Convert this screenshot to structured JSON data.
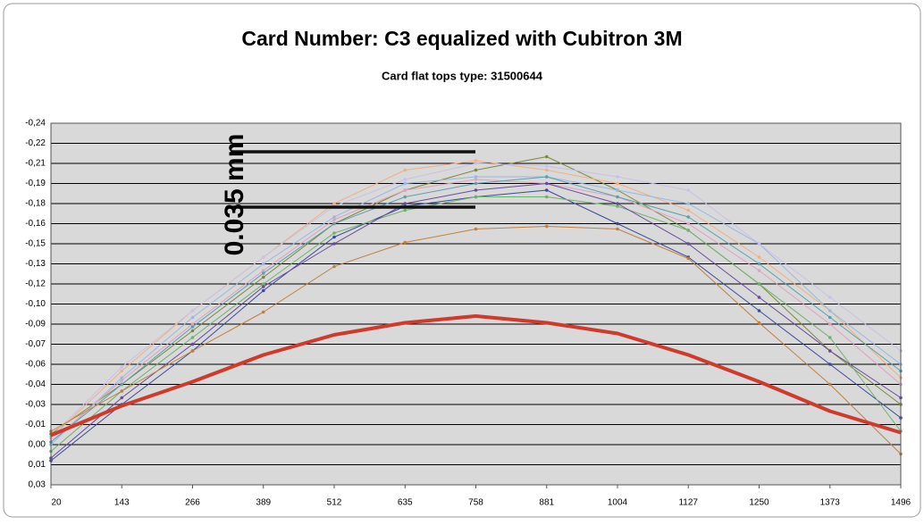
{
  "chart_data": {
    "type": "line",
    "title": "Card Number: C3 equalized with Cubitron 3M",
    "subtitle": "Card flat tops type: 31500644",
    "annotation": "0.035 mm",
    "x": [
      20,
      143,
      266,
      389,
      512,
      635,
      758,
      881,
      1004,
      1127,
      1250,
      1373,
      1496
    ],
    "xlim": [
      20,
      1496
    ],
    "xticks": [
      20,
      143,
      266,
      389,
      512,
      635,
      758,
      881,
      1004,
      1127,
      1250,
      1373,
      1496
    ],
    "ylim": [
      0.03,
      -0.24
    ],
    "yticks": [
      {
        "value": 0.03,
        "label": "0,03"
      },
      {
        "value": 0.015,
        "label": "0,01"
      },
      {
        "value": 0,
        "label": "0,00"
      },
      {
        "value": -0.015,
        "label": "-0,01"
      },
      {
        "value": -0.03,
        "label": "-0,03"
      },
      {
        "value": -0.045,
        "label": "-0,04"
      },
      {
        "value": -0.06,
        "label": "-0,06"
      },
      {
        "value": -0.075,
        "label": "-0,07"
      },
      {
        "value": -0.09,
        "label": "-0,09"
      },
      {
        "value": -0.105,
        "label": "-0,10"
      },
      {
        "value": -0.12,
        "label": "-0,12"
      },
      {
        "value": -0.135,
        "label": "-0,13"
      },
      {
        "value": -0.15,
        "label": "-0,15"
      },
      {
        "value": -0.165,
        "label": "-0,16"
      },
      {
        "value": -0.18,
        "label": "-0,18"
      },
      {
        "value": -0.195,
        "label": "-0,19"
      },
      {
        "value": -0.21,
        "label": "-0,21"
      },
      {
        "value": -0.225,
        "label": "-0,22"
      },
      {
        "value": -0.24,
        "label": "-0,24"
      }
    ],
    "grid": true,
    "series": [
      {
        "color": "#3a4a9a",
        "values": [
          0.012,
          -0.03,
          -0.07,
          -0.115,
          -0.155,
          -0.178,
          -0.185,
          -0.19,
          -0.165,
          -0.14,
          -0.1,
          -0.06,
          -0.02
        ]
      },
      {
        "color": "#7a8a3a",
        "values": [
          -0.008,
          -0.045,
          -0.085,
          -0.125,
          -0.165,
          -0.19,
          -0.205,
          -0.215,
          -0.19,
          -0.16,
          -0.12,
          -0.07,
          -0.03
        ]
      },
      {
        "color": "#f0b080",
        "values": [
          -0.005,
          -0.055,
          -0.1,
          -0.14,
          -0.18,
          -0.205,
          -0.212,
          -0.205,
          -0.195,
          -0.175,
          -0.14,
          -0.1,
          -0.05
        ]
      },
      {
        "color": "#9ab8e0",
        "values": [
          0,
          -0.05,
          -0.095,
          -0.135,
          -0.17,
          -0.195,
          -0.2,
          -0.2,
          -0.19,
          -0.18,
          -0.15,
          -0.1,
          -0.06
        ]
      },
      {
        "color": "#e0a0c0",
        "values": [
          -0.002,
          -0.048,
          -0.09,
          -0.13,
          -0.168,
          -0.19,
          -0.198,
          -0.195,
          -0.185,
          -0.165,
          -0.13,
          -0.09,
          -0.045
        ]
      },
      {
        "color": "#70b070",
        "values": [
          0.005,
          -0.04,
          -0.08,
          -0.12,
          -0.158,
          -0.175,
          -0.185,
          -0.185,
          -0.178,
          -0.16,
          -0.12,
          -0.08,
          -0.01
        ]
      },
      {
        "color": "#6a4a9a",
        "values": [
          0.01,
          -0.035,
          -0.075,
          -0.118,
          -0.15,
          -0.18,
          -0.19,
          -0.195,
          -0.18,
          -0.15,
          -0.11,
          -0.07,
          -0.035
        ]
      },
      {
        "color": "#5aa0b0",
        "values": [
          -0.002,
          -0.045,
          -0.088,
          -0.128,
          -0.165,
          -0.185,
          -0.195,
          -0.2,
          -0.185,
          -0.17,
          -0.135,
          -0.095,
          -0.055
        ]
      },
      {
        "color": "#c8c0e8",
        "values": [
          -0.006,
          -0.058,
          -0.1,
          -0.14,
          -0.178,
          -0.198,
          -0.21,
          -0.208,
          -0.2,
          -0.19,
          -0.15,
          -0.11,
          -0.07
        ]
      },
      {
        "color": "#c08040",
        "values": [
          -0.01,
          -0.04,
          -0.07,
          -0.099,
          -0.133,
          -0.151,
          -0.161,
          -0.163,
          -0.161,
          -0.139,
          -0.091,
          -0.045,
          0.007
        ]
      },
      {
        "color": "#d03a2a",
        "width": 4,
        "values": [
          -0.007,
          -0.029,
          -0.047,
          -0.067,
          -0.082,
          -0.091,
          -0.096,
          -0.091,
          -0.083,
          -0.067,
          -0.047,
          -0.025,
          -0.009
        ]
      }
    ]
  }
}
